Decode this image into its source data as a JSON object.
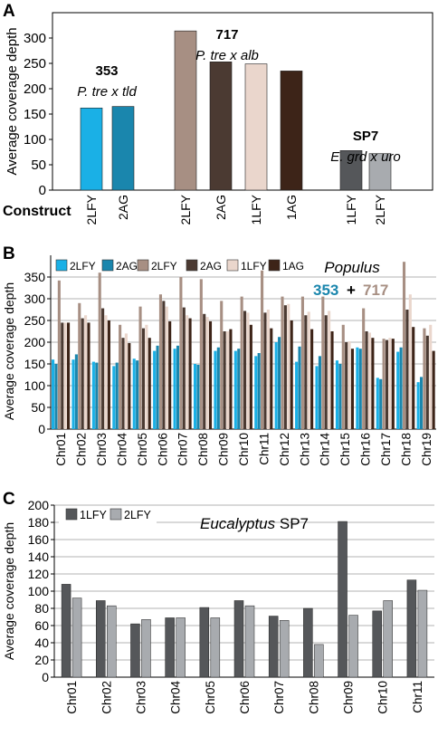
{
  "chart_data": [
    {
      "panel": "A",
      "type": "bar",
      "ylabel": "Average coverage depth",
      "ylim": [
        0,
        350
      ],
      "yticks": [
        "0",
        "50",
        "100",
        "150",
        "200",
        "250",
        "300"
      ],
      "construct_label": "Construct",
      "grid": false,
      "groups": [
        {
          "title": "353",
          "subtitle": "P. tre x tld",
          "bars": [
            {
              "label": "2LFY",
              "value": 162,
              "color": "#1ab0e6"
            },
            {
              "label": "2AG",
              "value": 165,
              "color": "#1a86ad"
            }
          ]
        },
        {
          "title": "717",
          "subtitle": "P. tre x alb",
          "bars": [
            {
              "label": "2LFY",
              "value": 314,
              "color": "#a78f83"
            },
            {
              "label": "2AG",
              "value": 253,
              "color": "#4b3a32"
            },
            {
              "label": "1LFY",
              "value": 249,
              "color": "#ead6cc"
            },
            {
              "label": "1AG",
              "value": 235,
              "color": "#3d2418"
            }
          ]
        },
        {
          "title": "SP7",
          "subtitle": "E. grd x uro",
          "bars": [
            {
              "label": "1LFY",
              "value": 78,
              "color": "#55575a"
            },
            {
              "label": "2LFY",
              "value": 72,
              "color": "#a8abaf"
            }
          ]
        }
      ]
    },
    {
      "panel": "B",
      "type": "bar",
      "ylabel": "Average coverage depth",
      "ylim": [
        0,
        400
      ],
      "yticks": [
        "0",
        "50",
        "100",
        "150",
        "200",
        "250",
        "300",
        "350"
      ],
      "grid": true,
      "legend_position": "top-left",
      "annotation": {
        "title": "Populus",
        "n1": "353",
        "plus": "+",
        "n2": "717"
      },
      "categories": [
        "Chr01",
        "Chr02",
        "Chr03",
        "Chr04",
        "Chr05",
        "Chr06",
        "Chr07",
        "Chr08",
        "Chr09",
        "Chr10",
        "Chr11",
        "Chr12",
        "Chr13",
        "Chr14",
        "Chr15",
        "Chr16",
        "Chr17",
        "Chr18",
        "Chr19"
      ],
      "series": [
        {
          "name": "2LFY",
          "color": "#1ab0e6",
          "values": [
            160,
            160,
            155,
            145,
            162,
            180,
            185,
            150,
            180,
            180,
            168,
            200,
            155,
            145,
            158,
            188,
            118,
            178,
            108
          ]
        },
        {
          "name": "2AG",
          "color": "#1a86ad",
          "values": [
            150,
            172,
            153,
            153,
            158,
            192,
            192,
            148,
            188,
            185,
            175,
            212,
            190,
            168,
            150,
            185,
            115,
            188,
            120
          ]
        },
        {
          "name": "2LFY",
          "color": "#a78f83",
          "values": [
            342,
            290,
            360,
            240,
            282,
            310,
            350,
            345,
            295,
            305,
            365,
            305,
            305,
            305,
            240,
            278,
            208,
            385,
            232
          ]
        },
        {
          "name": "2AG",
          "color": "#4b3a32",
          "values": [
            245,
            255,
            278,
            210,
            232,
            295,
            280,
            265,
            225,
            272,
            268,
            285,
            262,
            262,
            200,
            225,
            205,
            275,
            215
          ]
        },
        {
          "name": "1LFY",
          "color": "#ead6cc",
          "values": [
            245,
            262,
            262,
            220,
            240,
            282,
            262,
            258,
            225,
            268,
            275,
            288,
            270,
            272,
            202,
            222,
            210,
            310,
            240
          ]
        },
        {
          "name": "1AG",
          "color": "#3d2418",
          "values": [
            245,
            245,
            250,
            198,
            210,
            248,
            255,
            248,
            230,
            240,
            232,
            250,
            230,
            225,
            185,
            210,
            208,
            235,
            180
          ]
        }
      ]
    },
    {
      "panel": "C",
      "type": "bar",
      "ylabel": "Average coverage depth",
      "ylim": [
        0,
        200
      ],
      "yticks": [
        "0",
        "20",
        "40",
        "60",
        "80",
        "100",
        "120",
        "140",
        "160",
        "180",
        "200"
      ],
      "grid": true,
      "legend_position": "top-left",
      "annotation": {
        "title": "Eucalyptus",
        "suffix": "SP7"
      },
      "categories": [
        "Chr01",
        "Chr02",
        "Chr03",
        "Chr04",
        "Chr05",
        "Chr06",
        "Chr07",
        "Chr08",
        "Chr09",
        "Chr10",
        "Chr11"
      ],
      "series": [
        {
          "name": "1LFY",
          "color": "#55575a",
          "values": [
            108,
            89,
            62,
            69,
            81,
            89,
            71,
            80,
            181,
            77,
            113
          ]
        },
        {
          "name": "2LFY",
          "color": "#a8abaf",
          "values": [
            92,
            83,
            67,
            69,
            69,
            83,
            66,
            38,
            72,
            89,
            101
          ]
        }
      ]
    }
  ]
}
